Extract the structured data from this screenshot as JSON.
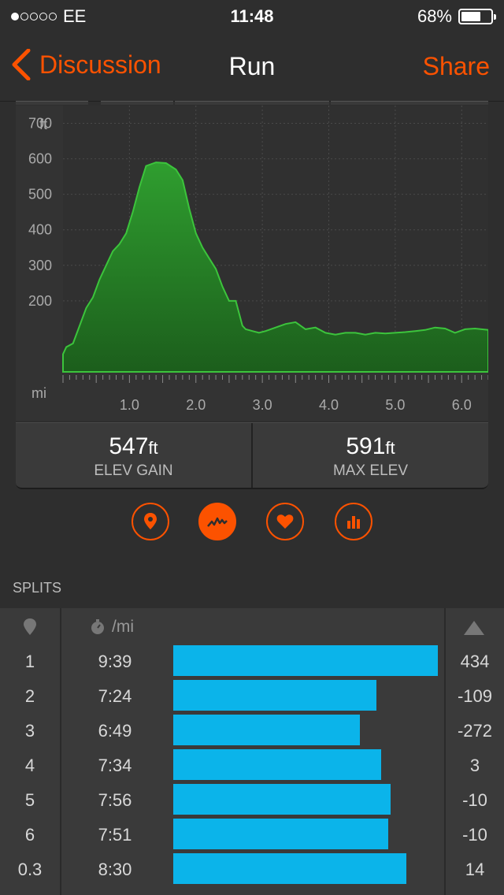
{
  "status": {
    "carrier": "EE",
    "time": "11:48",
    "battery": "68%",
    "battery_level": 0.68
  },
  "nav": {
    "back": "Discussion",
    "title": "Run",
    "share": "Share"
  },
  "chart_data": {
    "type": "area",
    "yunit": "ft",
    "xunit": "mi",
    "ylim": [
      0,
      750
    ],
    "xlim": [
      0,
      6.4
    ],
    "yticks": [
      200,
      300,
      400,
      500,
      600,
      700
    ],
    "xticks": [
      1.0,
      2.0,
      3.0,
      4.0,
      5.0,
      6.0
    ],
    "ytick_labels": [
      "200",
      "300",
      "400",
      "500",
      "600",
      "700"
    ],
    "xtick_labels": [
      "1.0",
      "2.0",
      "3.0",
      "4.0",
      "5.0",
      "6.0"
    ],
    "color": "#2e9b2e",
    "x": [
      0,
      0.05,
      0.15,
      0.25,
      0.35,
      0.45,
      0.55,
      0.65,
      0.75,
      0.85,
      0.95,
      1.05,
      1.15,
      1.25,
      1.4,
      1.55,
      1.7,
      1.8,
      1.9,
      2.0,
      2.1,
      2.2,
      2.3,
      2.4,
      2.5,
      2.6,
      2.7,
      2.75,
      2.85,
      2.95,
      3.05,
      3.2,
      3.35,
      3.5,
      3.65,
      3.8,
      3.95,
      4.1,
      4.25,
      4.4,
      4.55,
      4.7,
      4.85,
      5.0,
      5.15,
      5.3,
      5.45,
      5.6,
      5.75,
      5.9,
      6.05,
      6.2,
      6.4
    ],
    "y": [
      50,
      70,
      80,
      130,
      180,
      210,
      260,
      300,
      340,
      360,
      390,
      450,
      520,
      580,
      590,
      588,
      570,
      540,
      460,
      390,
      350,
      320,
      290,
      240,
      200,
      200,
      130,
      120,
      115,
      110,
      115,
      125,
      135,
      140,
      120,
      125,
      110,
      105,
      110,
      110,
      105,
      110,
      108,
      110,
      112,
      115,
      118,
      125,
      122,
      110,
      120,
      122,
      118
    ]
  },
  "stats": [
    {
      "value": "547",
      "unit": "ft",
      "label": "ELEV GAIN"
    },
    {
      "value": "591",
      "unit": "ft",
      "label": "MAX ELEV"
    }
  ],
  "icons": [
    "map-pin-icon",
    "elevation-icon",
    "heart-icon",
    "bar-chart-icon"
  ],
  "splits": {
    "title": "SPLITS",
    "pace_header": "/mi",
    "max_pace_seconds": 579,
    "rows": [
      {
        "mile": "1",
        "pace": "9:39",
        "elev": "434",
        "pace_seconds": 579
      },
      {
        "mile": "2",
        "pace": "7:24",
        "elev": "-109",
        "pace_seconds": 444
      },
      {
        "mile": "3",
        "pace": "6:49",
        "elev": "-272",
        "pace_seconds": 409
      },
      {
        "mile": "4",
        "pace": "7:34",
        "elev": "3",
        "pace_seconds": 454
      },
      {
        "mile": "5",
        "pace": "7:56",
        "elev": "-10",
        "pace_seconds": 476
      },
      {
        "mile": "6",
        "pace": "7:51",
        "elev": "-10",
        "pace_seconds": 471
      },
      {
        "mile": "0.3",
        "pace": "8:30",
        "elev": "14",
        "pace_seconds": 510
      }
    ]
  },
  "colors": {
    "accent": "#fc5200",
    "bar": "#0bb4ea",
    "area": "#2e9b2e"
  }
}
